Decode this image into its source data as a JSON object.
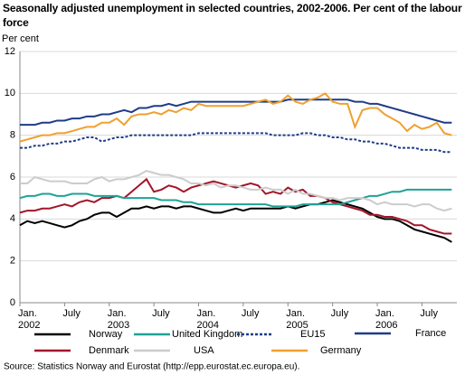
{
  "chart_data": {
    "type": "line",
    "title": "Seasonally adjusted unemployment in selected countries, 2002-2006. Per cent of the labour force",
    "y_label": "Per cent",
    "source": "Source: Statistics Norway and Eurostat (http://epp.eurostat.ec.europa.eu).",
    "categories": [
      "Jan.\n2002",
      null,
      null,
      null,
      null,
      null,
      "July",
      null,
      null,
      null,
      null,
      null,
      "Jan.\n2003",
      null,
      null,
      null,
      null,
      null,
      "July",
      null,
      null,
      null,
      null,
      null,
      "Jan.\n2004",
      null,
      null,
      null,
      null,
      null,
      "July",
      null,
      null,
      null,
      null,
      null,
      "Jan.\n2005",
      null,
      null,
      null,
      null,
      null,
      "July",
      null,
      null,
      null,
      null,
      null,
      "Jan.\n2006",
      null,
      null,
      null,
      null,
      null,
      "July",
      null,
      null,
      null,
      null
    ],
    "ylim": [
      0,
      12
    ],
    "yticks": [
      0,
      2,
      4,
      6,
      8,
      10,
      12
    ],
    "grid": true,
    "series": [
      {
        "name": "Norway",
        "color": "#000000",
        "values": [
          3.7,
          3.9,
          3.8,
          3.9,
          3.8,
          3.7,
          3.6,
          3.7,
          3.9,
          4.0,
          4.2,
          4.3,
          4.3,
          4.1,
          4.3,
          4.5,
          4.5,
          4.6,
          4.5,
          4.6,
          4.6,
          4.5,
          4.6,
          4.6,
          4.5,
          4.4,
          4.3,
          4.3,
          4.4,
          4.5,
          4.4,
          4.5,
          4.5,
          4.5,
          4.5,
          4.5,
          4.6,
          4.5,
          4.6,
          4.7,
          4.7,
          4.8,
          4.9,
          4.8,
          4.7,
          4.6,
          4.5,
          4.3,
          4.1,
          4.0,
          4.0,
          3.9,
          3.7,
          3.5,
          3.4,
          3.3,
          3.2,
          3.1,
          2.9
        ]
      },
      {
        "name": "Denmark",
        "color": "#a3152a",
        "values": [
          4.3,
          4.4,
          4.4,
          4.5,
          4.5,
          4.6,
          4.7,
          4.6,
          4.8,
          4.9,
          4.8,
          5.0,
          5.0,
          5.1,
          5.0,
          5.3,
          5.6,
          5.9,
          5.3,
          5.4,
          5.6,
          5.5,
          5.3,
          5.5,
          5.6,
          5.7,
          5.8,
          5.7,
          5.6,
          5.5,
          5.6,
          5.7,
          5.6,
          5.2,
          5.3,
          5.2,
          5.5,
          5.3,
          5.4,
          5.1,
          5.1,
          5.0,
          4.8,
          4.7,
          4.6,
          4.5,
          4.4,
          4.2,
          4.2,
          4.1,
          4.1,
          4.0,
          3.9,
          3.7,
          3.7,
          3.5,
          3.4,
          3.3,
          3.3
        ]
      },
      {
        "name": "United Kingdom",
        "color": "#1ea396",
        "values": [
          5.0,
          5.1,
          5.1,
          5.2,
          5.2,
          5.1,
          5.1,
          5.2,
          5.2,
          5.2,
          5.1,
          5.1,
          5.1,
          5.1,
          5.0,
          5.0,
          5.0,
          5.0,
          5.0,
          4.9,
          4.9,
          4.9,
          4.8,
          4.8,
          4.7,
          4.7,
          4.7,
          4.7,
          4.7,
          4.7,
          4.7,
          4.7,
          4.7,
          4.7,
          4.6,
          4.6,
          4.6,
          4.6,
          4.7,
          4.7,
          4.7,
          4.7,
          4.7,
          4.7,
          4.8,
          4.9,
          5.0,
          5.1,
          5.1,
          5.2,
          5.3,
          5.3,
          5.4,
          5.4,
          5.4,
          5.4,
          5.4,
          5.4,
          5.4
        ]
      },
      {
        "name": "USA",
        "color": "#cccccc",
        "values": [
          5.7,
          5.7,
          6.0,
          5.9,
          5.8,
          5.8,
          5.8,
          5.7,
          5.7,
          5.7,
          5.9,
          6.0,
          5.8,
          5.9,
          5.9,
          6.0,
          6.1,
          6.3,
          6.2,
          6.1,
          6.1,
          6.0,
          5.9,
          5.7,
          5.7,
          5.6,
          5.7,
          5.5,
          5.6,
          5.6,
          5.5,
          5.4,
          5.4,
          5.5,
          5.4,
          5.4,
          5.2,
          5.4,
          5.2,
          5.2,
          5.1,
          5.0,
          5.0,
          4.9,
          5.0,
          5.0,
          5.0,
          4.9,
          4.7,
          4.8,
          4.7,
          4.7,
          4.7,
          4.6,
          4.7,
          4.7,
          4.5,
          4.4,
          4.5
        ]
      },
      {
        "name": "EU15",
        "color": "#1f3c88",
        "dashed": true,
        "values": [
          7.4,
          7.4,
          7.5,
          7.5,
          7.6,
          7.6,
          7.7,
          7.7,
          7.8,
          7.9,
          7.9,
          7.7,
          7.8,
          7.9,
          7.9,
          8.0,
          8.0,
          8.0,
          8.0,
          8.0,
          8.0,
          8.0,
          8.0,
          8.0,
          8.1,
          8.1,
          8.1,
          8.1,
          8.1,
          8.1,
          8.1,
          8.1,
          8.1,
          8.1,
          8.0,
          8.0,
          8.0,
          8.0,
          8.1,
          8.1,
          8.0,
          8.0,
          7.9,
          7.9,
          7.8,
          7.8,
          7.7,
          7.7,
          7.6,
          7.6,
          7.5,
          7.4,
          7.4,
          7.4,
          7.3,
          7.3,
          7.3,
          7.2,
          7.2
        ]
      },
      {
        "name": "France",
        "color": "#1f3c88",
        "values": [
          8.5,
          8.5,
          8.5,
          8.6,
          8.6,
          8.7,
          8.7,
          8.8,
          8.8,
          8.9,
          8.9,
          9.0,
          9.0,
          9.1,
          9.2,
          9.1,
          9.3,
          9.3,
          9.4,
          9.4,
          9.5,
          9.4,
          9.5,
          9.6,
          9.6,
          9.6,
          9.6,
          9.6,
          9.6,
          9.6,
          9.6,
          9.6,
          9.6,
          9.6,
          9.6,
          9.6,
          9.7,
          9.7,
          9.7,
          9.7,
          9.7,
          9.7,
          9.7,
          9.7,
          9.7,
          9.6,
          9.6,
          9.5,
          9.5,
          9.4,
          9.3,
          9.2,
          9.1,
          9.0,
          8.9,
          8.8,
          8.7,
          8.6,
          8.6
        ]
      },
      {
        "name": "Germany",
        "color": "#f0a030",
        "values": [
          7.7,
          7.8,
          7.9,
          8.0,
          8.0,
          8.1,
          8.1,
          8.2,
          8.3,
          8.4,
          8.4,
          8.6,
          8.6,
          8.8,
          8.5,
          8.9,
          9.0,
          9.0,
          9.1,
          9.0,
          9.2,
          9.1,
          9.3,
          9.2,
          9.5,
          9.4,
          9.4,
          9.4,
          9.4,
          9.4,
          9.4,
          9.5,
          9.6,
          9.7,
          9.5,
          9.6,
          9.9,
          9.6,
          9.5,
          9.7,
          9.8,
          10.0,
          9.6,
          9.5,
          9.5,
          8.4,
          9.2,
          9.3,
          9.3,
          9.0,
          8.8,
          8.6,
          8.2,
          8.5,
          8.3,
          8.4,
          8.6,
          8.1,
          8.0
        ]
      }
    ]
  }
}
